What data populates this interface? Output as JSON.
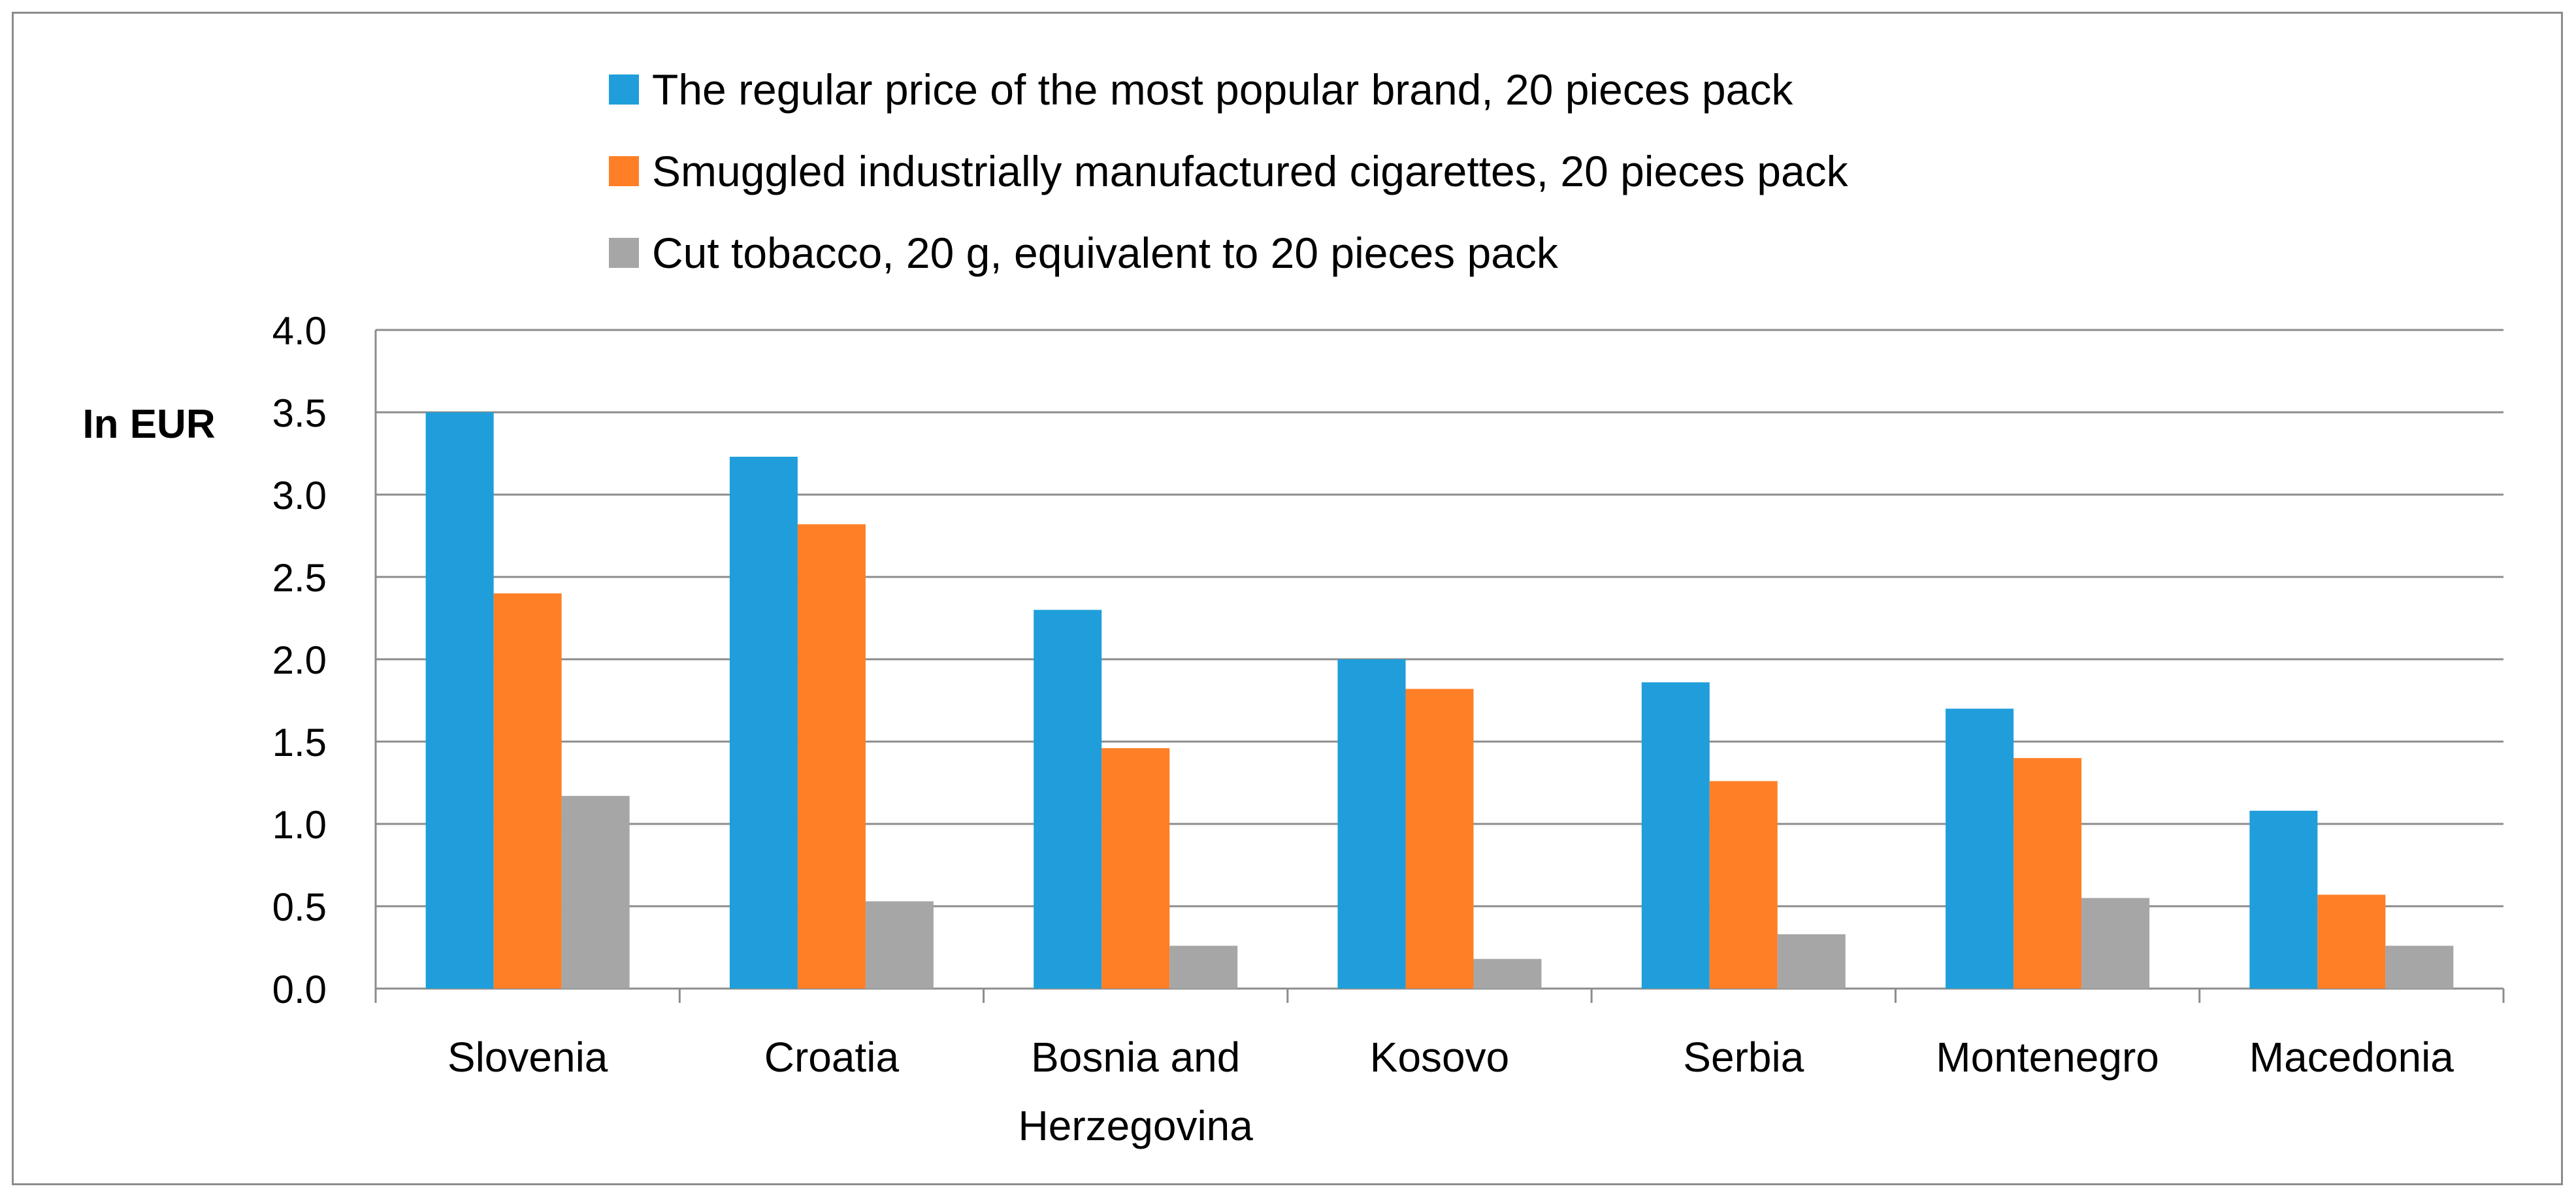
{
  "chart_data": {
    "type": "bar",
    "title": "",
    "xlabel": "",
    "ylabel": "In EUR",
    "ylim": [
      0,
      4.0
    ],
    "yticks": [
      "0.0",
      "0.5",
      "1.0",
      "1.5",
      "2.0",
      "2.5",
      "3.0",
      "3.5",
      "4.0"
    ],
    "grid": true,
    "legend_position": "top",
    "categories": [
      [
        "Slovenia"
      ],
      [
        "Croatia"
      ],
      [
        "Bosnia and",
        "Herzegovina"
      ],
      [
        "Kosovo"
      ],
      [
        "Serbia"
      ],
      [
        "Montenegro"
      ],
      [
        "Macedonia"
      ]
    ],
    "series": [
      {
        "name": "The regular price of the most popular brand, 20 pieces pack",
        "color": "#1f9edb",
        "values": [
          3.5,
          3.23,
          2.3,
          2.0,
          1.86,
          1.7,
          1.08
        ]
      },
      {
        "name": "Smuggled industrially manufactured cigarettes, 20 pieces pack",
        "color": "#ff7f27",
        "values": [
          2.4,
          2.82,
          1.46,
          1.82,
          1.26,
          1.4,
          0.57
        ]
      },
      {
        "name": "Cut tobacco, 20 g, equivalent to 20 pieces pack",
        "color": "#a6a6a6",
        "values": [
          1.17,
          0.53,
          0.26,
          0.18,
          0.33,
          0.55,
          0.26
        ]
      }
    ]
  }
}
